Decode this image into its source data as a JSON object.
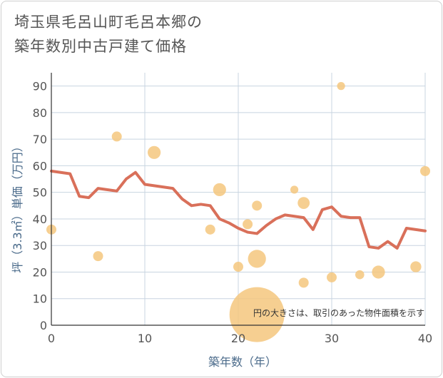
{
  "title": {
    "line1": "埼玉県毛呂山町毛呂本郷の",
    "line2": "築年数別中古戸建て価格"
  },
  "chart_data": {
    "type": "scatter",
    "title": "埼玉県毛呂山町毛呂本郷の築年数別中古戸建て価格",
    "xlabel": "築年数（年）",
    "ylabel": "坪（3.3㎡）単価（万円）",
    "xlim": [
      0,
      40
    ],
    "ylim": [
      0,
      95
    ],
    "x_ticks": [
      "0",
      "10",
      "20",
      "30",
      "40"
    ],
    "y_ticks": [
      "0",
      "10",
      "20",
      "30",
      "40",
      "50",
      "60",
      "70",
      "80",
      "90"
    ],
    "x_tick_values": [
      0,
      10,
      20,
      30,
      40
    ],
    "y_tick_values": [
      0,
      10,
      20,
      30,
      40,
      50,
      60,
      70,
      80,
      90
    ],
    "grid": true,
    "annotation": "円の大きさは、取引のあった物件面積を示す",
    "scatter_points": [
      {
        "x": 0,
        "y": 36,
        "size": 1
      },
      {
        "x": 5,
        "y": 26,
        "size": 1
      },
      {
        "x": 7,
        "y": 71,
        "size": 1
      },
      {
        "x": 11,
        "y": 65,
        "size": 1.3
      },
      {
        "x": 17,
        "y": 36,
        "size": 1
      },
      {
        "x": 18,
        "y": 51,
        "size": 1.3
      },
      {
        "x": 20,
        "y": 22,
        "size": 1
      },
      {
        "x": 21,
        "y": 38,
        "size": 1
      },
      {
        "x": 22,
        "y": 45,
        "size": 1
      },
      {
        "x": 22,
        "y": 25,
        "size": 1.8
      },
      {
        "x": 22,
        "y": 4,
        "size": 5.5
      },
      {
        "x": 26,
        "y": 51,
        "size": 0.8
      },
      {
        "x": 27,
        "y": 46,
        "size": 1.2
      },
      {
        "x": 27,
        "y": 16,
        "size": 1
      },
      {
        "x": 30,
        "y": 18,
        "size": 1
      },
      {
        "x": 31,
        "y": 90,
        "size": 0.8
      },
      {
        "x": 33,
        "y": 19,
        "size": 0.9
      },
      {
        "x": 35,
        "y": 20,
        "size": 1.3
      },
      {
        "x": 39,
        "y": 22,
        "size": 1.1
      },
      {
        "x": 40,
        "y": 58,
        "size": 1
      }
    ],
    "trend_line": {
      "x": [
        0,
        1,
        2,
        3,
        4,
        5,
        6,
        7,
        8,
        9,
        10,
        11,
        12,
        13,
        14,
        15,
        16,
        17,
        18,
        19,
        20,
        21,
        22,
        23,
        24,
        25,
        26,
        27,
        28,
        29,
        30,
        31,
        32,
        33,
        34,
        35,
        36,
        37,
        38,
        39,
        40
      ],
      "y": [
        58,
        57.5,
        57,
        48.5,
        48,
        51.5,
        51,
        50.5,
        55,
        57.5,
        53,
        52.5,
        52,
        51.5,
        47.5,
        45,
        45.5,
        45,
        40,
        38.5,
        36.5,
        35,
        34.5,
        37.5,
        40,
        41.5,
        41,
        40.5,
        36,
        43.5,
        44.5,
        41,
        40.5,
        40.5,
        29.5,
        29,
        31.5,
        29,
        36.5,
        36,
        35.5
      ],
      "color": "#d9705a"
    },
    "bubble_color": "#f5c77e",
    "grid_color": "#c8d4e0"
  }
}
